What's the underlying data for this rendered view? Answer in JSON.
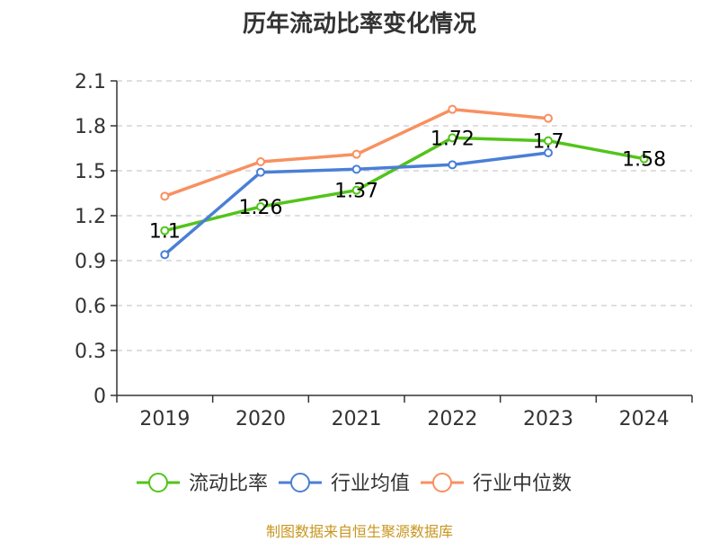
{
  "chart_data": {
    "type": "line",
    "title": "历年流动比率变化情况",
    "categories": [
      "2019",
      "2020",
      "2021",
      "2022",
      "2023",
      "2024"
    ],
    "ylim": [
      0,
      2.1
    ],
    "yticks": [
      "0",
      "0.3",
      "0.6",
      "0.9",
      "1.2",
      "1.5",
      "1.8",
      "2.1"
    ],
    "grid": true,
    "legend_position": "bottom",
    "series": [
      {
        "name": "流动比率",
        "color": "#52c41a",
        "values": [
          1.1,
          1.26,
          1.37,
          1.72,
          1.7,
          1.58
        ],
        "labels": [
          "1.1",
          "1.26",
          "1.37",
          "1.72",
          "1.7",
          "1.58"
        ]
      },
      {
        "name": "行业均值",
        "color": "#4a7fd6",
        "values": [
          0.94,
          1.49,
          1.51,
          1.54,
          1.62,
          null
        ]
      },
      {
        "name": "行业中位数",
        "color": "#f89060",
        "values": [
          1.33,
          1.56,
          1.61,
          1.91,
          1.85,
          null
        ]
      }
    ]
  },
  "footer": {
    "source": "制图数据来自恒生聚源数据库"
  }
}
